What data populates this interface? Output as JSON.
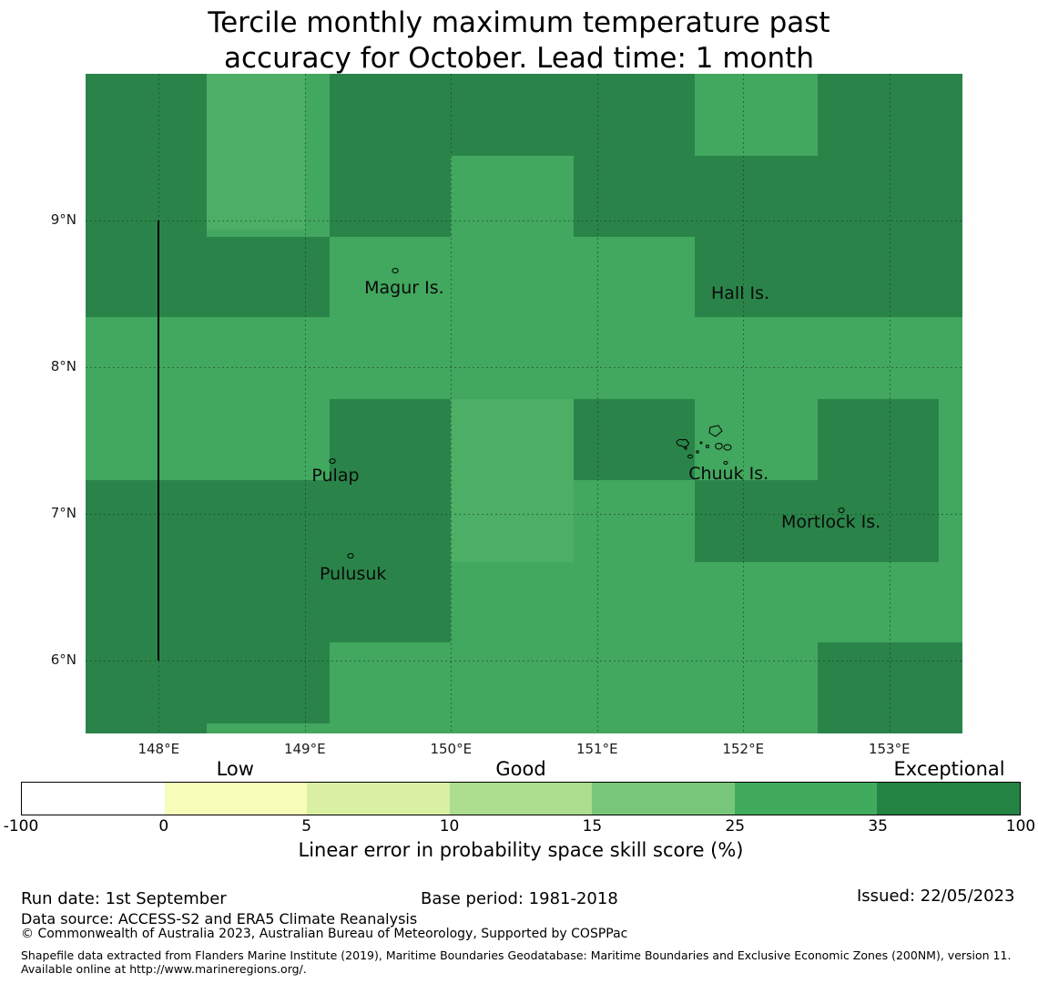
{
  "title": {
    "lines": [
      "Tercile monthly maximum temperature past",
      "accuracy for October. Lead time: 1 month"
    ]
  },
  "chart_data": {
    "type": "heatmap",
    "title": "Tercile monthly maximum temperature past accuracy for October. Lead time: 1 month",
    "extent": {
      "lon_min": 147.5,
      "lon_max": 153.5,
      "lat_min": 5.5,
      "lat_max": 10.0
    },
    "grid_on": true,
    "x_ticks": [
      {
        "label": "148°E",
        "lon": 148
      },
      {
        "label": "149°E",
        "lon": 149
      },
      {
        "label": "150°E",
        "lon": 150
      },
      {
        "label": "151°E",
        "lon": 151
      },
      {
        "label": "152°E",
        "lon": 152
      },
      {
        "label": "153°E",
        "lon": 153
      }
    ],
    "y_ticks": [
      {
        "label": "9°N",
        "lat": 9
      },
      {
        "label": "8°N",
        "lat": 8
      },
      {
        "label": "7°N",
        "lat": 7
      },
      {
        "label": "6°N",
        "lat": 6
      }
    ],
    "base_value": "25-35",
    "value_colors": {
      "15-25": "#4dae66",
      "25-35": "#42a75f",
      "35-100": "#2a8449"
    },
    "cells": [
      {
        "lon": [
          148.33,
          149.0
        ],
        "lat": [
          8.94,
          10.0
        ],
        "value": "15-25"
      },
      {
        "lon": [
          150.0,
          150.84
        ],
        "lat": [
          6.67,
          7.78
        ],
        "value": "15-25"
      },
      {
        "lon": [
          147.5,
          148.33
        ],
        "lat": [
          8.34,
          10.0
        ],
        "value": "35-100"
      },
      {
        "lon": [
          149.17,
          150.0
        ],
        "lat": [
          8.89,
          10.0
        ],
        "value": "35-100"
      },
      {
        "lon": [
          150.0,
          150.84
        ],
        "lat": [
          9.44,
          10.0
        ],
        "value": "35-100"
      },
      {
        "lon": [
          150.84,
          151.67
        ],
        "lat": [
          8.89,
          10.0
        ],
        "value": "35-100"
      },
      {
        "lon": [
          152.51,
          153.5
        ],
        "lat": [
          8.89,
          10.0
        ],
        "value": "35-100"
      },
      {
        "lon": [
          151.67,
          152.51
        ],
        "lat": [
          8.89,
          9.44
        ],
        "value": "35-100"
      },
      {
        "lon": [
          148.33,
          149.17
        ],
        "lat": [
          8.34,
          8.89
        ],
        "value": "35-100"
      },
      {
        "lon": [
          151.67,
          153.5
        ],
        "lat": [
          8.34,
          8.89
        ],
        "value": "35-100"
      },
      {
        "lon": [
          149.17,
          150.0
        ],
        "lat": [
          6.12,
          7.78
        ],
        "value": "35-100"
      },
      {
        "lon": [
          147.5,
          148.33
        ],
        "lat": [
          5.5,
          7.23
        ],
        "value": "35-100"
      },
      {
        "lon": [
          148.33,
          149.17
        ],
        "lat": [
          5.57,
          7.23
        ],
        "value": "35-100"
      },
      {
        "lon": [
          150.84,
          151.67
        ],
        "lat": [
          7.23,
          7.78
        ],
        "value": "35-100"
      },
      {
        "lon": [
          152.51,
          153.34
        ],
        "lat": [
          7.23,
          7.78
        ],
        "value": "35-100"
      },
      {
        "lon": [
          151.67,
          153.34
        ],
        "lat": [
          6.67,
          7.23
        ],
        "value": "35-100"
      },
      {
        "lon": [
          152.51,
          153.5
        ],
        "lat": [
          5.5,
          6.12
        ],
        "value": "35-100"
      }
    ],
    "place_labels": [
      {
        "text": "Magur Is.",
        "lon": 149.68,
        "lat": 8.54
      },
      {
        "text": "Hall Is.",
        "lon": 151.98,
        "lat": 8.5
      },
      {
        "text": "Pulap",
        "lon": 149.21,
        "lat": 7.26
      },
      {
        "text": "Chuuk Is.",
        "lon": 151.9,
        "lat": 7.27
      },
      {
        "text": "Mortlock Is.",
        "lon": 152.6,
        "lat": 6.94
      },
      {
        "text": "Pulusuk",
        "lon": 149.33,
        "lat": 6.59
      }
    ],
    "islet_markers": [
      {
        "name": "magur-islet",
        "lon": 149.62,
        "lat": 8.66
      },
      {
        "name": "pulap-islet",
        "lon": 149.19,
        "lat": 7.36
      },
      {
        "name": "pulusuk-islet",
        "lon": 149.31,
        "lat": 6.71
      },
      {
        "name": "mortlock-islet",
        "lon": 152.67,
        "lat": 7.02
      }
    ],
    "chuuk_archipelago": {
      "lon": 151.48,
      "lat": 7.63,
      "w": 80,
      "h": 55
    },
    "eez_boundary": {
      "lon": 148.0,
      "lat_min": 6.0,
      "lat_max": 9.0
    },
    "colorbar": {
      "boundaries": [
        -100,
        0,
        5,
        10,
        15,
        25,
        35,
        100
      ],
      "segment_colors": [
        "#ffffff",
        "#f7fcb9",
        "#d9f0a3",
        "#addd8e",
        "#78c679",
        "#41ab5d",
        "#238443"
      ],
      "category_labels": [
        {
          "text": "Low",
          "segment_index": 1
        },
        {
          "text": "Good",
          "segment_index": 3
        },
        {
          "text": "Exceptional",
          "segment_index": 6
        }
      ],
      "caption": "Linear error in probability space skill score (%)"
    }
  },
  "footer": {
    "run_date": "Run date: 1st September",
    "base_period": "Base period: 1981-2018",
    "issued": "Issued: 22/05/2023",
    "data_source": "Data source: ACCESS-S2 and ERA5 Climate Reanalysis",
    "copyright": "© Commonwealth of Australia 2023, Australian Bureau of Meteorology, Supported by COSPPac",
    "shapefile_note": "Shapefile data extracted from Flanders Marine Institute (2019), Maritime Boundaries Geodatabase: Maritime Boundaries and Exclusive Economic Zones (200NM), version 11. Available online at http://www.marineregions.org/."
  }
}
